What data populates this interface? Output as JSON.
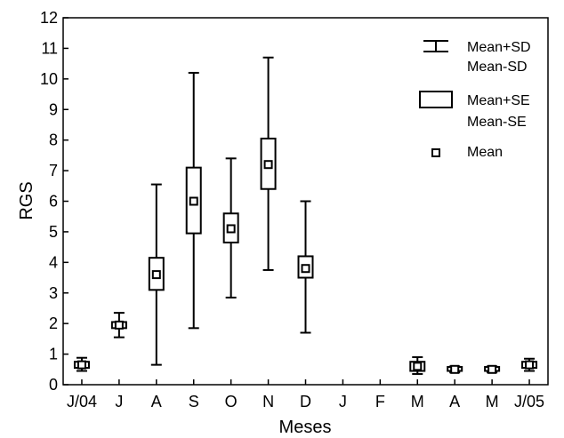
{
  "chart_data": {
    "type": "box",
    "xlabel": "Meses",
    "ylabel": "RGS",
    "ylim": [
      0,
      12
    ],
    "yticks": [
      0,
      1,
      2,
      3,
      4,
      5,
      6,
      7,
      8,
      9,
      10,
      11,
      12
    ],
    "categories": [
      "J/04",
      "J",
      "A",
      "S",
      "O",
      "N",
      "D",
      "J",
      "F",
      "M",
      "A",
      "M",
      "J/05"
    ],
    "grid": false,
    "legend": {
      "position": "top-right",
      "entries": [
        "Mean+SD",
        "Mean-SD",
        "Mean+SE",
        "Mean-SE",
        "Mean"
      ]
    },
    "series": [
      {
        "category": "J/04",
        "mean": 0.65,
        "se_low": 0.55,
        "se_high": 0.75,
        "sd_low": 0.45,
        "sd_high": 0.88
      },
      {
        "category": "J",
        "mean": 1.95,
        "se_low": 1.85,
        "se_high": 2.05,
        "sd_low": 1.55,
        "sd_high": 2.35
      },
      {
        "category": "A",
        "mean": 3.6,
        "se_low": 3.1,
        "se_high": 4.15,
        "sd_low": 0.65,
        "sd_high": 6.55
      },
      {
        "category": "S",
        "mean": 6.0,
        "se_low": 4.95,
        "se_high": 7.1,
        "sd_low": 1.85,
        "sd_high": 10.2
      },
      {
        "category": "O",
        "mean": 5.1,
        "se_low": 4.65,
        "se_high": 5.6,
        "sd_low": 2.85,
        "sd_high": 7.4
      },
      {
        "category": "N",
        "mean": 7.2,
        "se_low": 6.4,
        "se_high": 8.05,
        "sd_low": 3.75,
        "sd_high": 10.7
      },
      {
        "category": "D",
        "mean": 3.8,
        "se_low": 3.5,
        "se_high": 4.2,
        "sd_low": 1.7,
        "sd_high": 6.0
      },
      {
        "category": "M",
        "mean": 0.6,
        "se_low": 0.45,
        "se_high": 0.75,
        "sd_low": 0.35,
        "sd_high": 0.9
      },
      {
        "category": "A",
        "mean": 0.5,
        "se_low": 0.45,
        "se_high": 0.58,
        "sd_low": 0.4,
        "sd_high": 0.6
      },
      {
        "category": "M",
        "mean": 0.5,
        "se_low": 0.45,
        "se_high": 0.58,
        "sd_low": 0.4,
        "sd_high": 0.6
      },
      {
        "category": "J/05",
        "mean": 0.65,
        "se_low": 0.55,
        "se_high": 0.75,
        "sd_low": 0.45,
        "sd_high": 0.85
      }
    ]
  }
}
